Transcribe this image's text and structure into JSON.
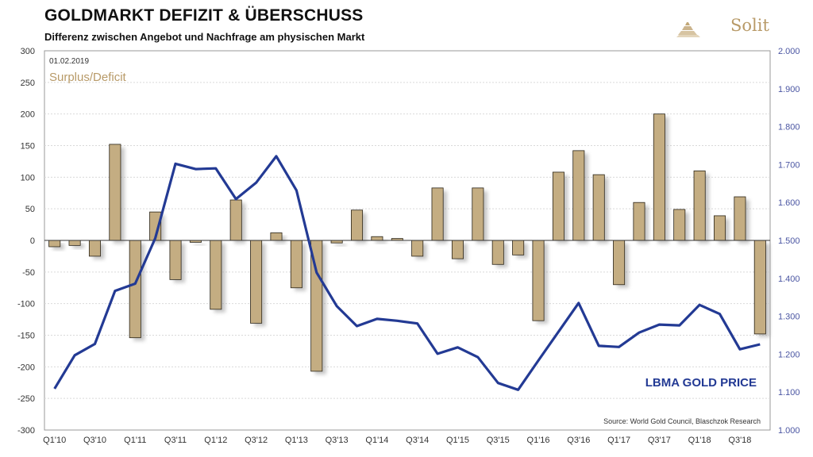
{
  "header": {
    "title": "GOLDMARKT DEFIZIT & ÜBERSCHUSS",
    "subtitle": "Differenz zwischen Angebot und Nachfrage am physischen Markt",
    "brand": "Solit"
  },
  "colors": {
    "bar": "#c4ad82",
    "bar_stroke": "#2a2418",
    "line": "#233a94",
    "annotation_gold": "#b89a68"
  },
  "chart_data": {
    "type": "bar+line",
    "date_label": "01.02.2019",
    "series_label_left": "Surplus/Deficit",
    "series_label_right": "LBMA GOLD PRICE",
    "source": "Source: World Gold Council, Blaschzok Research",
    "y_left": {
      "min": -300,
      "max": 300,
      "step": 50,
      "ticks": [
        "300",
        "250",
        "200",
        "150",
        "100",
        "50",
        "0",
        "-50",
        "-100",
        "-150",
        "-200",
        "-250",
        "-300"
      ]
    },
    "y_right": {
      "min": 1000,
      "max": 2000,
      "step": 100,
      "ticks": [
        "2.000",
        "1.900",
        "1.800",
        "1.700",
        "1.600",
        "1.500",
        "1.400",
        "1.300",
        "1.200",
        "1.100",
        "1.000"
      ]
    },
    "x_labels": [
      "Q1'10",
      "Q3'10",
      "Q1'11",
      "Q3'11",
      "Q1'12",
      "Q3'12",
      "Q1'13",
      "Q3'13",
      "Q1'14",
      "Q3'14",
      "Q1'15",
      "Q3'15",
      "Q1'16",
      "Q3'16",
      "Q1'17",
      "Q3'17",
      "Q1'18",
      "Q3'18"
    ],
    "quarters": [
      "Q1'10",
      "Q2'10",
      "Q3'10",
      "Q4'10",
      "Q1'11",
      "Q2'11",
      "Q3'11",
      "Q4'11",
      "Q1'12",
      "Q2'12",
      "Q3'12",
      "Q4'12",
      "Q1'13",
      "Q2'13",
      "Q3'13",
      "Q4'13",
      "Q1'14",
      "Q2'14",
      "Q3'14",
      "Q4'14",
      "Q1'15",
      "Q2'15",
      "Q3'15",
      "Q4'15",
      "Q1'16",
      "Q2'16",
      "Q3'16",
      "Q4'16",
      "Q1'17",
      "Q2'17",
      "Q3'17",
      "Q4'17",
      "Q1'18",
      "Q2'18",
      "Q3'18",
      "Q4'18"
    ],
    "surplus_deficit": [
      -10,
      -8,
      -25,
      152,
      -154,
      45,
      -62,
      -3,
      -109,
      64,
      -131,
      12,
      -75,
      -207,
      -4,
      48,
      6,
      3,
      -25,
      83,
      -29,
      83,
      -38,
      -23,
      -127,
      108,
      142,
      104,
      -70,
      60,
      200,
      49,
      110,
      39,
      69,
      -148
    ],
    "gold_price": [
      1109,
      1197,
      1227,
      1367,
      1386,
      1506,
      1702,
      1688,
      1690,
      1609,
      1652,
      1722,
      1632,
      1415,
      1327,
      1274,
      1293,
      1288,
      1281,
      1201,
      1218,
      1192,
      1124,
      1106,
      1183,
      1259,
      1335,
      1222,
      1219,
      1257,
      1278,
      1276,
      1330,
      1306,
      1213,
      1226
    ]
  }
}
